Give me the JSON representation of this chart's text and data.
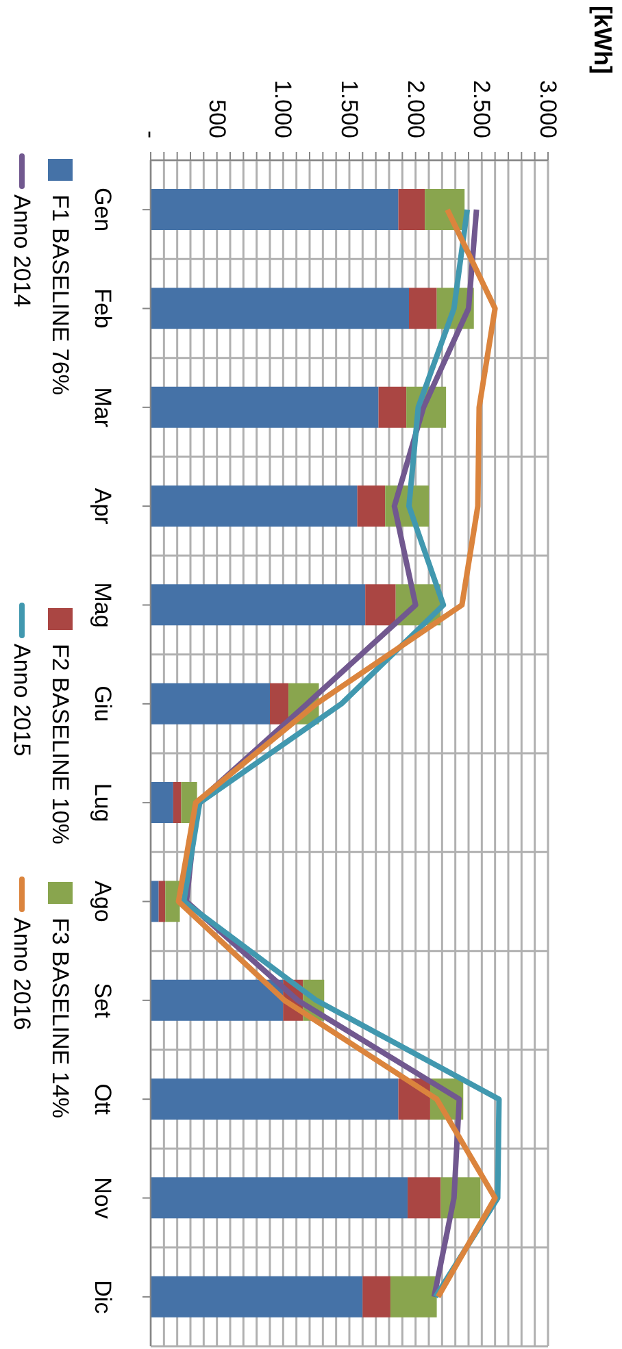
{
  "chart_data": {
    "type": "bar",
    "stacked": true,
    "orientation": "horizontal",
    "annotations": [
      "[kWh]"
    ],
    "categories": [
      "Gen",
      "Feb",
      "Mar",
      "Apr",
      "Mag",
      "Giu",
      "Lug",
      "Ago",
      "Set",
      "Ott",
      "Nov",
      "Dic"
    ],
    "series": [
      {
        "name": "F1 BASELINE 76%",
        "color": "#4572a7",
        "values": [
          1870,
          1950,
          1720,
          1560,
          1620,
          900,
          170,
          60,
          1000,
          1870,
          1940,
          1600
        ]
      },
      {
        "name": "F2 BASELINE 10%",
        "color": "#aa4643",
        "values": [
          200,
          210,
          210,
          210,
          230,
          140,
          60,
          50,
          150,
          240,
          250,
          210
        ]
      },
      {
        "name": "F3 BASELINE 14%",
        "color": "#89a54e",
        "values": [
          300,
          280,
          300,
          330,
          340,
          230,
          120,
          110,
          160,
          250,
          300,
          350
        ]
      },
      {
        "name": "Anno 2014",
        "type": "line",
        "color": "#71588f",
        "values": [
          2460,
          2400,
          2060,
          1840,
          2000,
          1180,
          350,
          270,
          1110,
          2330,
          2290,
          2140
        ]
      },
      {
        "name": "Anno 2015",
        "type": "line",
        "color": "#4198af",
        "values": [
          2390,
          2290,
          2020,
          1950,
          2210,
          1440,
          370,
          250,
          1250,
          2630,
          2620,
          2150
        ]
      },
      {
        "name": "Anno 2016",
        "type": "line",
        "color": "#db843d",
        "values": [
          2240,
          2600,
          2480,
          2470,
          2350,
          1250,
          340,
          210,
          1010,
          2160,
          2600,
          2170
        ]
      }
    ],
    "xlim": [
      0,
      3000
    ],
    "xticks": [
      {
        "value": 0,
        "label": "-"
      },
      {
        "value": 100,
        "label": null
      },
      {
        "value": 200,
        "label": null
      },
      {
        "value": 300,
        "label": null
      },
      {
        "value": 400,
        "label": null
      },
      500,
      {
        "value": 600,
        "label": null
      },
      {
        "value": 700,
        "label": null
      },
      {
        "value": 800,
        "label": null
      },
      {
        "value": 900,
        "label": null
      },
      {
        "value": 1000,
        "label": "1.000"
      },
      {
        "value": 1100,
        "label": null
      },
      {
        "value": 1200,
        "label": null
      },
      {
        "value": 1300,
        "label": null
      },
      {
        "value": 1400,
        "label": null
      },
      {
        "value": 1500,
        "label": "1.500"
      },
      {
        "value": 1600,
        "label": null
      },
      {
        "value": 1700,
        "label": null
      },
      {
        "value": 1800,
        "label": null
      },
      {
        "value": 1900,
        "label": null
      },
      {
        "value": 2000,
        "label": "2.000"
      },
      {
        "value": 2100,
        "label": null
      },
      {
        "value": 2200,
        "label": null
      },
      {
        "value": 2300,
        "label": null
      },
      {
        "value": 2400,
        "label": null
      },
      {
        "value": 2500,
        "label": "2.500"
      },
      {
        "value": 2600,
        "label": null
      },
      {
        "value": 2700,
        "label": null
      },
      {
        "value": 2800,
        "label": null
      },
      {
        "value": 2900,
        "label": null
      },
      {
        "value": 3000,
        "label": "3.000"
      }
    ],
    "grid": true,
    "legend": "left",
    "marker": "none",
    "line_style": "solid"
  }
}
